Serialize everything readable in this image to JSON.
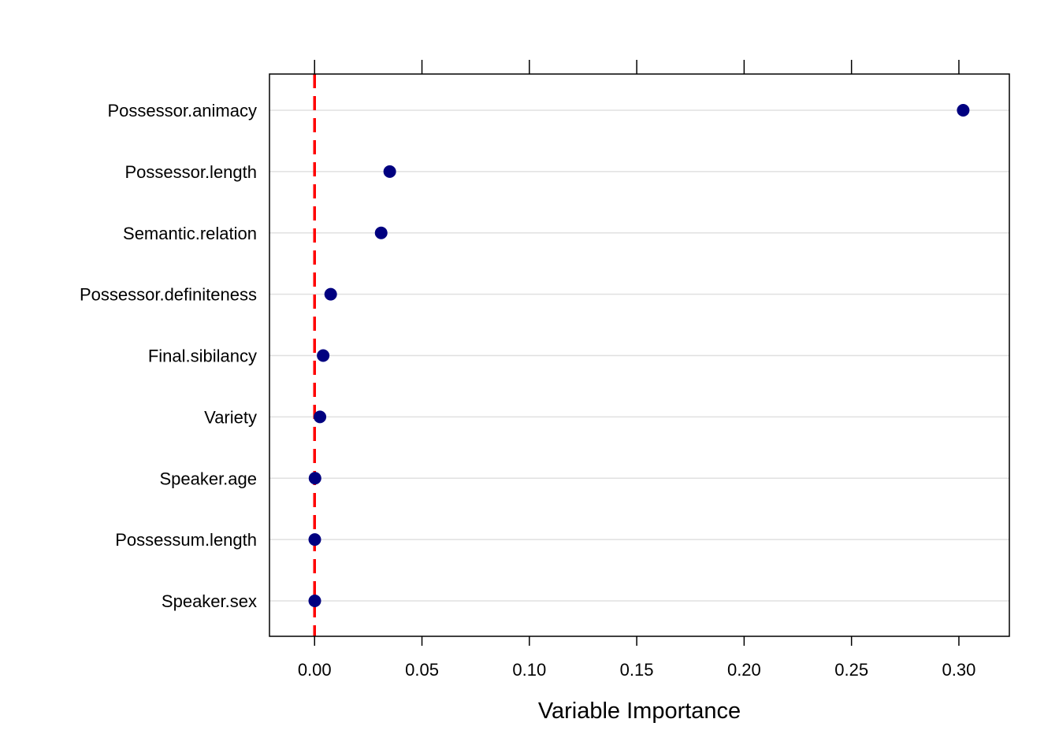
{
  "chart_data": {
    "type": "scatter",
    "subtype": "dotplot",
    "xlabel": "Variable Importance",
    "ylabel": "",
    "xlim": [
      -0.021,
      0.3235
    ],
    "x_ticks": [
      0.0,
      0.05,
      0.1,
      0.15,
      0.2,
      0.25,
      0.3
    ],
    "x_tick_labels": [
      "0.00",
      "0.05",
      "0.10",
      "0.15",
      "0.20",
      "0.25",
      "0.30"
    ],
    "categories": [
      "Possessor.animacy",
      "Possessor.length",
      "Semantic.relation",
      "Possessor.definiteness",
      "Final.sibilancy",
      "Variety",
      "Speaker.age",
      "Possessum.length",
      "Speaker.sex"
    ],
    "values": [
      0.302,
      0.035,
      0.031,
      0.0075,
      0.004,
      0.0025,
      0.0002,
      0.0001,
      0.0001
    ],
    "reference_line": {
      "x": 0.0,
      "style": "dashed",
      "color": "#ff0000"
    },
    "grid": "horizontal",
    "colors": {
      "points": "#000080",
      "grid": "#e0e0e0",
      "axis": "#000000"
    }
  }
}
